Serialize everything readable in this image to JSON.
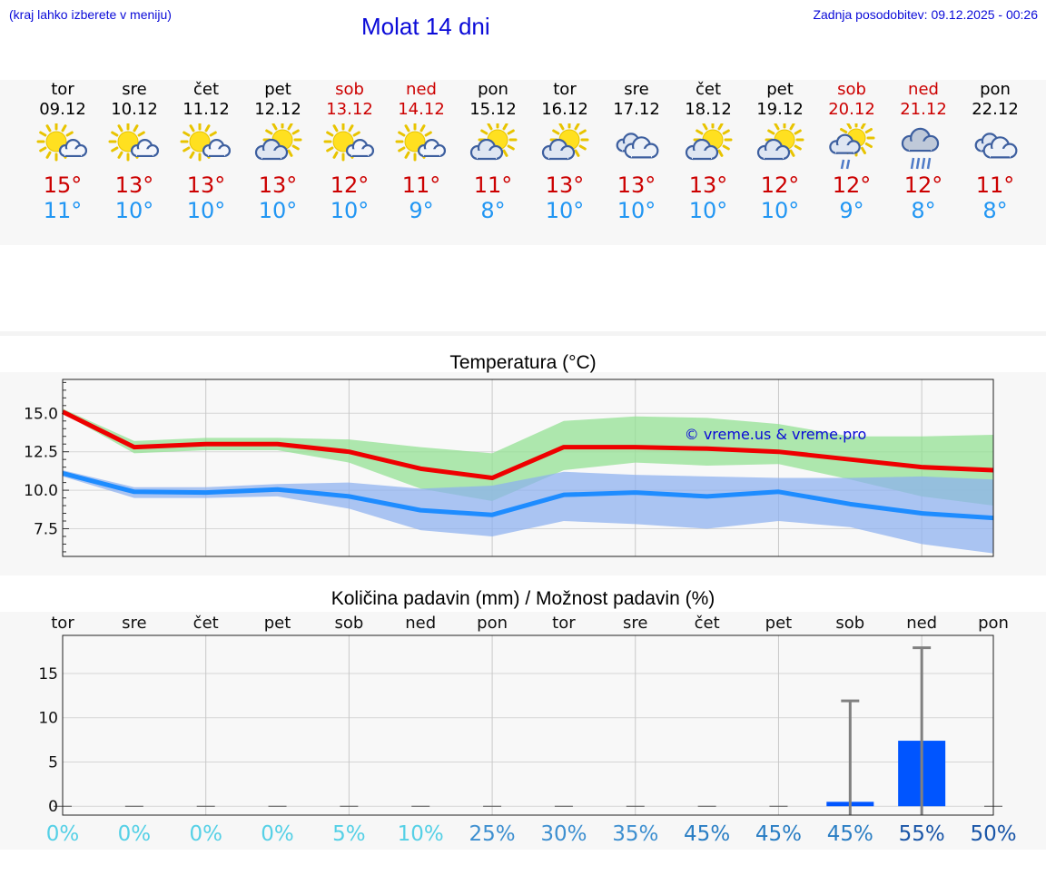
{
  "header": {
    "hint": "(kraj lahko izberete v meniju)",
    "title": "Molat 14 dni",
    "updated": "Zadnja posodobitev: 09.12.2025 - 00:26"
  },
  "days": [
    {
      "name": "tor",
      "date": "09.12",
      "weekend": false,
      "icon": "sun-cloud-icon",
      "max": "15°",
      "min": "11°"
    },
    {
      "name": "sre",
      "date": "10.12",
      "weekend": false,
      "icon": "sun-cloud-icon",
      "max": "13°",
      "min": "10°"
    },
    {
      "name": "čet",
      "date": "11.12",
      "weekend": false,
      "icon": "sun-cloud-icon",
      "max": "13°",
      "min": "10°"
    },
    {
      "name": "pet",
      "date": "12.12",
      "weekend": false,
      "icon": "cloud-sun-icon",
      "max": "13°",
      "min": "10°"
    },
    {
      "name": "sob",
      "date": "13.12",
      "weekend": true,
      "icon": "sun-cloud-icon",
      "max": "12°",
      "min": "10°"
    },
    {
      "name": "ned",
      "date": "14.12",
      "weekend": true,
      "icon": "sun-cloud-icon",
      "max": "11°",
      "min": "9°"
    },
    {
      "name": "pon",
      "date": "15.12",
      "weekend": false,
      "icon": "cloud-sun-icon",
      "max": "11°",
      "min": "8°"
    },
    {
      "name": "tor",
      "date": "16.12",
      "weekend": false,
      "icon": "cloud-sun-icon",
      "max": "13°",
      "min": "10°"
    },
    {
      "name": "sre",
      "date": "17.12",
      "weekend": false,
      "icon": "cloudy-icon",
      "max": "13°",
      "min": "10°"
    },
    {
      "name": "čet",
      "date": "18.12",
      "weekend": false,
      "icon": "cloud-sun-icon",
      "max": "13°",
      "min": "10°"
    },
    {
      "name": "pet",
      "date": "19.12",
      "weekend": false,
      "icon": "cloud-sun-icon",
      "max": "12°",
      "min": "10°"
    },
    {
      "name": "sob",
      "date": "20.12",
      "weekend": true,
      "icon": "sun-cloud-rain-icon",
      "max": "12°",
      "min": "9°"
    },
    {
      "name": "ned",
      "date": "21.12",
      "weekend": true,
      "icon": "cloud-rain-icon",
      "max": "12°",
      "min": "8°"
    },
    {
      "name": "pon",
      "date": "22.12",
      "weekend": false,
      "icon": "cloudy-icon",
      "max": "11°",
      "min": "8°"
    }
  ],
  "colors": {
    "max": "#cc0000",
    "min": "#2196f3",
    "max_line": "#ee0000",
    "min_line": "#1e8cff",
    "max_band": "#90e090",
    "min_band": "#8cb0f0",
    "bar": "#0055ff",
    "errbar": "#808080",
    "link": "#0a0ad8"
  },
  "chart_data": [
    {
      "type": "line",
      "title": "Temperatura (°C)",
      "watermark": "© vreme.us & vreme.pro",
      "ylim": [
        5.7,
        17.2
      ],
      "yticks": [
        "15.0",
        "12.5",
        "10.0",
        "7.5"
      ],
      "ytick_values": [
        15.0,
        12.5,
        10.0,
        7.5
      ],
      "x": [
        0,
        1,
        2,
        3,
        4,
        5,
        6,
        7,
        8,
        9,
        10,
        11,
        12,
        13
      ],
      "series": [
        {
          "name": "max",
          "values": [
            15.1,
            12.8,
            13.0,
            13.0,
            12.5,
            11.4,
            10.8,
            12.8,
            12.8,
            12.7,
            12.5,
            12.0,
            11.5,
            11.3
          ]
        },
        {
          "name": "min",
          "values": [
            11.1,
            9.9,
            9.85,
            10.05,
            9.6,
            8.7,
            8.4,
            9.7,
            9.85,
            9.6,
            9.9,
            9.1,
            8.5,
            8.2
          ]
        }
      ],
      "max_range": {
        "upper": [
          15.3,
          13.2,
          13.4,
          13.4,
          13.3,
          12.8,
          12.4,
          14.5,
          14.8,
          14.7,
          14.3,
          13.5,
          13.5,
          13.6
        ],
        "lower": [
          15.0,
          12.4,
          12.6,
          12.6,
          11.8,
          10.1,
          9.3,
          11.3,
          11.8,
          11.6,
          11.7,
          10.7,
          9.6,
          9.0
        ]
      },
      "min_range": {
        "upper": [
          11.3,
          10.2,
          10.2,
          10.4,
          10.5,
          10.1,
          10.3,
          11.2,
          11.0,
          10.9,
          10.8,
          10.8,
          10.9,
          10.7
        ],
        "lower": [
          10.9,
          9.5,
          9.5,
          9.6,
          8.8,
          7.4,
          7.0,
          8.0,
          7.8,
          7.5,
          8.0,
          7.6,
          6.5,
          5.9
        ]
      }
    },
    {
      "type": "bar",
      "title": "Količina padavin (mm) / Možnost padavin (%)",
      "categories": [
        "tor",
        "sre",
        "čet",
        "pet",
        "sob",
        "ned",
        "pon",
        "tor",
        "sre",
        "čet",
        "pet",
        "sob",
        "ned",
        "pon"
      ],
      "ylim": [
        -1,
        19.3
      ],
      "yticks": [
        "15",
        "10",
        "5",
        "0"
      ],
      "ytick_values": [
        15,
        10,
        5,
        0
      ],
      "values": [
        0,
        0,
        0,
        0,
        0,
        0,
        0,
        0,
        0,
        0,
        0,
        0.5,
        7.4,
        0
      ],
      "max_values": [
        0,
        0,
        0,
        0,
        0,
        0,
        0,
        0,
        0,
        0,
        0,
        11.9,
        17.9,
        0
      ],
      "probability": [
        "0%",
        "0%",
        "0%",
        "0%",
        "5%",
        "10%",
        "25%",
        "30%",
        "35%",
        "45%",
        "45%",
        "45%",
        "55%",
        "50%"
      ],
      "probability_values": [
        0,
        0,
        0,
        0,
        5,
        10,
        25,
        30,
        35,
        45,
        45,
        45,
        55,
        50
      ]
    }
  ]
}
